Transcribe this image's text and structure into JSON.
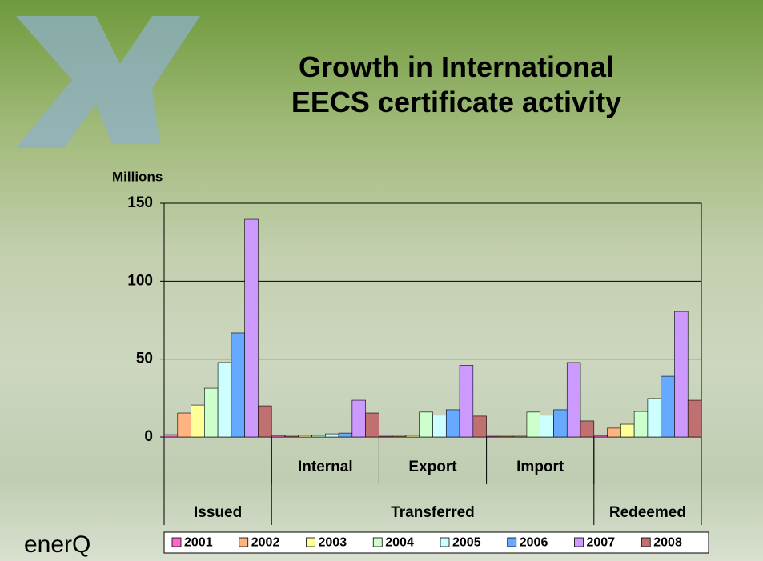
{
  "chart_data": {
    "type": "bar",
    "title": "Growth in International EECS certificate activity",
    "ylabel": "Millions",
    "logo": "enerQ",
    "categories": [
      null,
      "Internal",
      "Export",
      "Import",
      null
    ],
    "category_groups": [
      {
        "name": "Issued",
        "span": 1
      },
      {
        "name": "Transferred",
        "span": 3
      },
      {
        "name": "Redeemed",
        "span": 1
      }
    ],
    "ylim": [
      0,
      150
    ],
    "yticks": [
      0,
      50,
      100,
      150
    ],
    "grid": true,
    "series": [
      {
        "name": "2001",
        "color": "#ff66cc",
        "values": [
          1.5,
          1,
          0.5,
          0.5,
          1
        ]
      },
      {
        "name": "2002",
        "color": "#ffb380",
        "values": [
          15.4,
          0.5,
          0.5,
          0.5,
          5.7
        ]
      },
      {
        "name": "2003",
        "color": "#ffff99",
        "values": [
          20.5,
          1,
          1,
          0.5,
          8.2
        ]
      },
      {
        "name": "2004",
        "color": "#ccffcc",
        "values": [
          31.3,
          1,
          16,
          16,
          16.4
        ]
      },
      {
        "name": "2005",
        "color": "#ccffff",
        "values": [
          47.8,
          2,
          14,
          14,
          24.7
        ]
      },
      {
        "name": "2006",
        "color": "#66aaff",
        "values": [
          66.8,
          2.5,
          17.5,
          17.5,
          39
        ]
      },
      {
        "name": "2007",
        "color": "#cc99ff",
        "values": [
          139.7,
          23.6,
          46,
          47.8,
          80.6
        ]
      },
      {
        "name": "2008",
        "color": "#c07070",
        "values": [
          20,
          15.4,
          13.4,
          10.3,
          23.6
        ]
      }
    ]
  }
}
